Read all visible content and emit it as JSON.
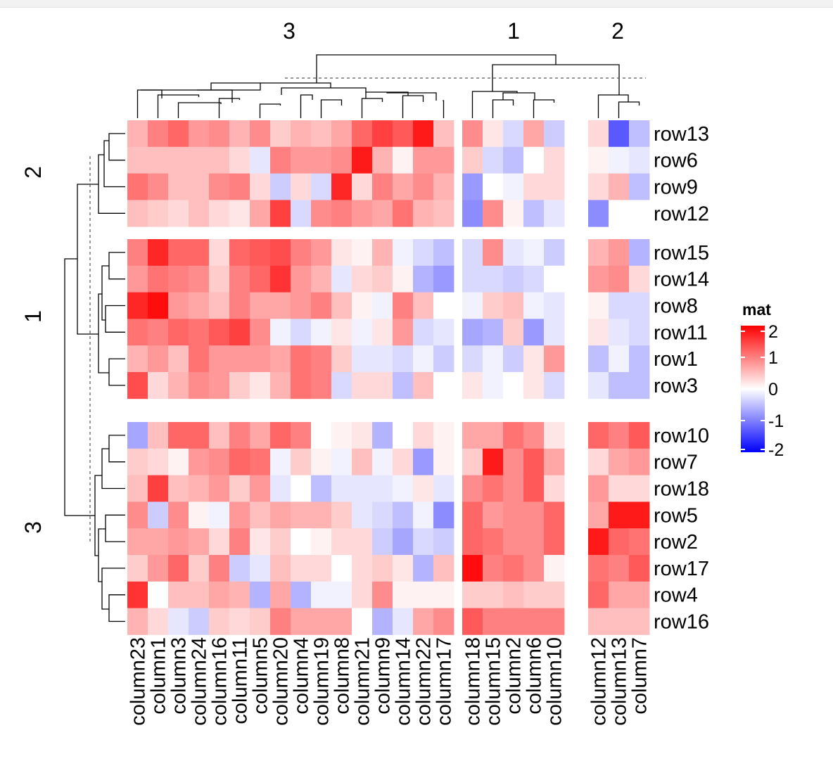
{
  "chart_data": {
    "type": "heatmap",
    "legend": {
      "title": "mat",
      "ticks": [
        "2",
        "1",
        "0",
        "-1",
        "-2"
      ],
      "tick_values": [
        2,
        1,
        0,
        -1,
        -2
      ],
      "colors": [
        "#0000ff",
        "#ffffff",
        "#ff0000"
      ],
      "color_domain": [
        -2,
        0,
        2
      ],
      "placement": "right"
    },
    "column_slices": [
      {
        "label": "3",
        "columns": [
          "column23",
          "column1",
          "column3",
          "column24",
          "column16",
          "column11",
          "column5",
          "column20",
          "column4",
          "column19",
          "column8",
          "column21",
          "column9",
          "column14",
          "column22",
          "column17"
        ]
      },
      {
        "label": "1",
        "columns": [
          "column18",
          "column15",
          "column2",
          "column6",
          "column10"
        ]
      },
      {
        "label": "2",
        "columns": [
          "column12",
          "column13",
          "column7"
        ]
      }
    ],
    "row_slices": [
      {
        "label": "2",
        "rows": [
          "row13",
          "row6",
          "row9",
          "row12"
        ]
      },
      {
        "label": "1",
        "rows": [
          "row15",
          "row14",
          "row8",
          "row11",
          "row1",
          "row3"
        ]
      },
      {
        "label": "3",
        "rows": [
          "row10",
          "row7",
          "row18",
          "row5",
          "row2",
          "row17",
          "row4",
          "row16"
        ]
      }
    ],
    "values": [
      [
        0.6,
        1.0,
        1.2,
        0.8,
        0.9,
        0.6,
        0.9,
        0.4,
        0.6,
        0.5,
        0.7,
        1.2,
        1.5,
        1.3,
        1.8,
        0.5,
        0.9,
        0.2,
        -0.3,
        0.7,
        -0.4,
        0.3,
        -1.3,
        -0.5
      ],
      [
        0.5,
        0.5,
        0.5,
        0.5,
        0.5,
        0.3,
        -0.2,
        1.0,
        0.8,
        0.8,
        0.9,
        1.8,
        0.6,
        0.1,
        0.8,
        0.8,
        0.4,
        -0.3,
        -0.5,
        0.0,
        0.3,
        0.1,
        -0.1,
        -0.2
      ],
      [
        1.1,
        0.9,
        0.5,
        0.5,
        0.9,
        1.0,
        0.3,
        -0.4,
        0.3,
        -0.3,
        1.7,
        0.3,
        1.0,
        0.7,
        0.9,
        0.6,
        -0.8,
        0.0,
        -0.1,
        0.3,
        0.3,
        0.3,
        0.6,
        -0.5
      ],
      [
        0.5,
        0.4,
        0.3,
        0.5,
        0.3,
        0.2,
        0.7,
        1.5,
        -0.3,
        0.9,
        1.0,
        0.8,
        0.7,
        1.1,
        0.6,
        0.5,
        -0.9,
        0.9,
        0.1,
        -0.5,
        -0.2,
        -0.9,
        0.0,
        0.0
      ],
      [
        1.0,
        1.7,
        1.2,
        1.2,
        0.3,
        1.2,
        1.3,
        1.4,
        1.0,
        0.8,
        0.2,
        0.1,
        0.6,
        -0.1,
        -0.3,
        -0.5,
        -0.3,
        0.9,
        -0.2,
        -0.1,
        -0.4,
        0.6,
        0.8,
        -0.6
      ],
      [
        0.8,
        1.1,
        1.0,
        0.9,
        0.4,
        1.0,
        1.2,
        1.6,
        0.8,
        0.6,
        -0.2,
        0.3,
        0.4,
        0.1,
        -0.6,
        -0.8,
        -0.3,
        -0.3,
        -0.4,
        -0.3,
        0.0,
        0.8,
        0.9,
        0.3
      ],
      [
        1.7,
        1.9,
        0.8,
        0.7,
        0.5,
        1.0,
        0.7,
        0.7,
        0.8,
        1.0,
        0.5,
        0.1,
        -0.1,
        1.0,
        0.5,
        0.0,
        -0.1,
        0.4,
        0.5,
        -0.1,
        -0.2,
        0.1,
        -0.3,
        -0.3
      ],
      [
        1.1,
        1.0,
        1.2,
        1.1,
        1.3,
        1.5,
        0.9,
        -0.1,
        -0.3,
        -0.1,
        0.2,
        -0.1,
        0.2,
        0.8,
        -0.3,
        -0.2,
        -0.7,
        -0.6,
        0.4,
        -0.8,
        -0.2,
        0.2,
        -0.2,
        -0.3
      ],
      [
        0.6,
        0.8,
        0.5,
        1.1,
        0.8,
        0.8,
        0.8,
        0.7,
        1.1,
        1.0,
        0.4,
        -0.2,
        -0.2,
        -0.3,
        -0.1,
        -0.4,
        -0.3,
        -0.1,
        -0.4,
        0.2,
        0.8,
        -0.5,
        -0.1,
        -0.5
      ],
      [
        1.4,
        0.3,
        0.6,
        0.9,
        0.8,
        0.4,
        0.2,
        0.6,
        1.1,
        1.0,
        -0.3,
        0.3,
        0.3,
        -0.5,
        0.5,
        0.0,
        0.2,
        -0.1,
        0.0,
        0.2,
        -0.3,
        -0.2,
        -0.5,
        -0.5
      ],
      [
        -0.7,
        0.5,
        1.2,
        1.2,
        0.5,
        1.0,
        0.7,
        1.2,
        1.0,
        0.0,
        0.1,
        0.2,
        -0.6,
        0.0,
        0.3,
        0.1,
        0.7,
        0.7,
        1.1,
        0.9,
        0.2,
        1.2,
        1.0,
        1.3
      ],
      [
        0.4,
        0.3,
        0.1,
        0.8,
        0.9,
        1.2,
        1.1,
        -0.1,
        0.4,
        0.1,
        -0.1,
        0.5,
        -0.1,
        0.3,
        -0.8,
        0.1,
        0.4,
        1.8,
        0.9,
        1.3,
        0.7,
        0.3,
        0.7,
        0.8
      ],
      [
        0.5,
        1.5,
        0.5,
        0.6,
        0.8,
        0.4,
        0.8,
        -0.2,
        0.0,
        -0.5,
        -0.2,
        -0.2,
        -0.2,
        -0.1,
        0.2,
        -0.2,
        0.9,
        1.1,
        0.9,
        1.3,
        0.3,
        0.8,
        0.3,
        0.3
      ],
      [
        0.9,
        -0.4,
        0.9,
        0.1,
        -0.1,
        0.8,
        0.5,
        0.7,
        0.6,
        0.6,
        0.4,
        -0.2,
        -0.3,
        -0.5,
        -0.1,
        -0.9,
        1.2,
        0.8,
        0.9,
        0.9,
        1.2,
        0.7,
        1.8,
        1.8
      ],
      [
        0.7,
        0.7,
        0.8,
        0.7,
        0.3,
        1.0,
        0.2,
        0.4,
        0.0,
        0.1,
        0.3,
        0.3,
        -0.4,
        -0.7,
        -0.3,
        -0.4,
        1.2,
        1.1,
        0.9,
        0.9,
        1.2,
        1.8,
        1.2,
        1.1
      ],
      [
        0.4,
        0.8,
        1.2,
        0.4,
        1.0,
        -0.4,
        -0.2,
        0.5,
        0.3,
        0.3,
        0.0,
        0.3,
        0.4,
        0.2,
        -0.6,
        0.5,
        1.9,
        1.0,
        1.1,
        0.9,
        0.1,
        1.1,
        1.0,
        1.3
      ],
      [
        1.6,
        0.0,
        0.5,
        0.5,
        0.7,
        0.6,
        -0.6,
        0.7,
        -0.6,
        -0.1,
        -0.1,
        0.3,
        0.9,
        0.1,
        0.1,
        0.1,
        0.4,
        0.4,
        0.5,
        0.4,
        0.4,
        1.2,
        0.7,
        0.7
      ],
      [
        0.6,
        0.3,
        -0.2,
        -0.4,
        0.4,
        0.3,
        0.4,
        1.0,
        0.7,
        0.7,
        0.7,
        0.0,
        -0.6,
        -0.2,
        0.7,
        0.9,
        1.3,
        1.0,
        1.0,
        1.0,
        1.0,
        0.5,
        0.5,
        0.5
      ]
    ]
  }
}
